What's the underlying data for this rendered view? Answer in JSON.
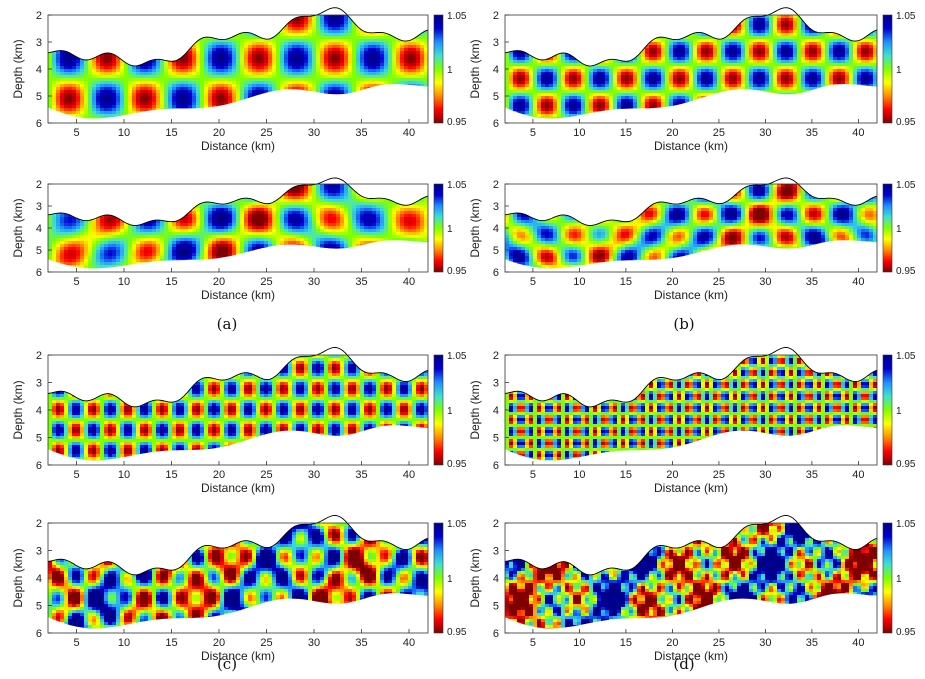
{
  "figure": {
    "captions": [
      "(a)",
      "(b)",
      "(c)",
      "(d)"
    ],
    "colormap": [
      "#7f0000",
      "#ff0000",
      "#ff8c00",
      "#ffff00",
      "#7fff00",
      "#3fe0d0",
      "#1e90ff",
      "#0000cd",
      "#00008b"
    ]
  },
  "chart_data": [
    {
      "id": "a-top",
      "type": "heatmap",
      "xlabel": "Distance (km)",
      "ylabel": "Depth (km)",
      "xlim": [
        2,
        42
      ],
      "ylim": [
        6,
        2
      ],
      "xticks": [
        "5",
        "10",
        "15",
        "20",
        "25",
        "30",
        "35",
        "40"
      ],
      "yticks": [
        "2",
        "3",
        "4",
        "5",
        "6"
      ],
      "colorbar": {
        "min": "0.95",
        "mid": "1",
        "max": "1.05"
      },
      "pattern": "checkerboard",
      "rows": 2,
      "cols": 10,
      "noise": 0.0
    },
    {
      "id": "a-bottom",
      "type": "heatmap",
      "xlabel": "Distance (km)",
      "ylabel": "Depth (km)",
      "xlim": [
        2,
        42
      ],
      "ylim": [
        6,
        2
      ],
      "xticks": [
        "5",
        "10",
        "15",
        "20",
        "25",
        "30",
        "35",
        "40"
      ],
      "yticks": [
        "2",
        "3",
        "4",
        "5",
        "6"
      ],
      "colorbar": {
        "min": "0.95",
        "mid": "1",
        "max": "1.05"
      },
      "pattern": "recovered",
      "rows": 2,
      "cols": 10,
      "noise": 0.35
    },
    {
      "id": "b-top",
      "type": "heatmap",
      "xlabel": "Distance (km)",
      "ylabel": "Depth (km)",
      "xlim": [
        2,
        42
      ],
      "ylim": [
        6,
        2
      ],
      "xticks": [
        "5",
        "10",
        "15",
        "20",
        "25",
        "30",
        "35",
        "40"
      ],
      "yticks": [
        "2",
        "3",
        "4",
        "5",
        "6"
      ],
      "colorbar": {
        "min": "0.95",
        "mid": "1",
        "max": "1.05"
      },
      "pattern": "checkerboard",
      "rows": 3,
      "cols": 14,
      "noise": 0.0
    },
    {
      "id": "b-bottom",
      "type": "heatmap",
      "xlabel": "Distance (km)",
      "ylabel": "Depth (km)",
      "xlim": [
        2,
        42
      ],
      "ylim": [
        6,
        2
      ],
      "xticks": [
        "5",
        "10",
        "15",
        "20",
        "25",
        "30",
        "35",
        "40"
      ],
      "yticks": [
        "2",
        "3",
        "4",
        "5",
        "6"
      ],
      "colorbar": {
        "min": "0.95",
        "mid": "1",
        "max": "1.05"
      },
      "pattern": "recovered",
      "rows": 3,
      "cols": 14,
      "noise": 0.55
    },
    {
      "id": "c-top",
      "type": "heatmap",
      "xlabel": "Distance (km)",
      "ylabel": "Depth (km)",
      "xlim": [
        2,
        42
      ],
      "ylim": [
        6,
        2
      ],
      "xticks": [
        "5",
        "10",
        "15",
        "20",
        "25",
        "30",
        "35",
        "40"
      ],
      "yticks": [
        "2",
        "3",
        "4",
        "5",
        "6"
      ],
      "colorbar": {
        "min": "0.95",
        "mid": "1",
        "max": "1.05"
      },
      "pattern": "checkerboard",
      "rows": 4,
      "cols": 22,
      "noise": 0.0
    },
    {
      "id": "c-bottom",
      "type": "heatmap",
      "xlabel": "Distance (km)",
      "ylabel": "Depth (km)",
      "xlim": [
        2,
        42
      ],
      "ylim": [
        6,
        2
      ],
      "xticks": [
        "5",
        "10",
        "15",
        "20",
        "25",
        "30",
        "35",
        "40"
      ],
      "yticks": [
        "2",
        "3",
        "4",
        "5",
        "6"
      ],
      "colorbar": {
        "min": "0.95",
        "mid": "1",
        "max": "1.05"
      },
      "pattern": "recovered",
      "rows": 4,
      "cols": 22,
      "noise": 0.8
    },
    {
      "id": "d-top",
      "type": "heatmap",
      "xlabel": "Distance (km)",
      "ylabel": "Depth (km)",
      "xlim": [
        2,
        42
      ],
      "ylim": [
        6,
        2
      ],
      "xticks": [
        "5",
        "10",
        "15",
        "20",
        "25",
        "30",
        "35",
        "40"
      ],
      "yticks": [
        "2",
        "3",
        "4",
        "5",
        "6"
      ],
      "colorbar": {
        "min": "0.95",
        "mid": "1",
        "max": "1.05"
      },
      "pattern": "checkerboard",
      "rows": 7,
      "cols": 40,
      "noise": 0.0
    },
    {
      "id": "d-bottom",
      "type": "heatmap",
      "xlabel": "Distance (km)",
      "ylabel": "Depth (km)",
      "xlim": [
        2,
        42
      ],
      "ylim": [
        6,
        2
      ],
      "xticks": [
        "5",
        "10",
        "15",
        "20",
        "25",
        "30",
        "35",
        "40"
      ],
      "yticks": [
        "2",
        "3",
        "4",
        "5",
        "6"
      ],
      "colorbar": {
        "min": "0.95",
        "mid": "1",
        "max": "1.05"
      },
      "pattern": "recovered",
      "rows": 7,
      "cols": 40,
      "noise": 1.2
    }
  ]
}
